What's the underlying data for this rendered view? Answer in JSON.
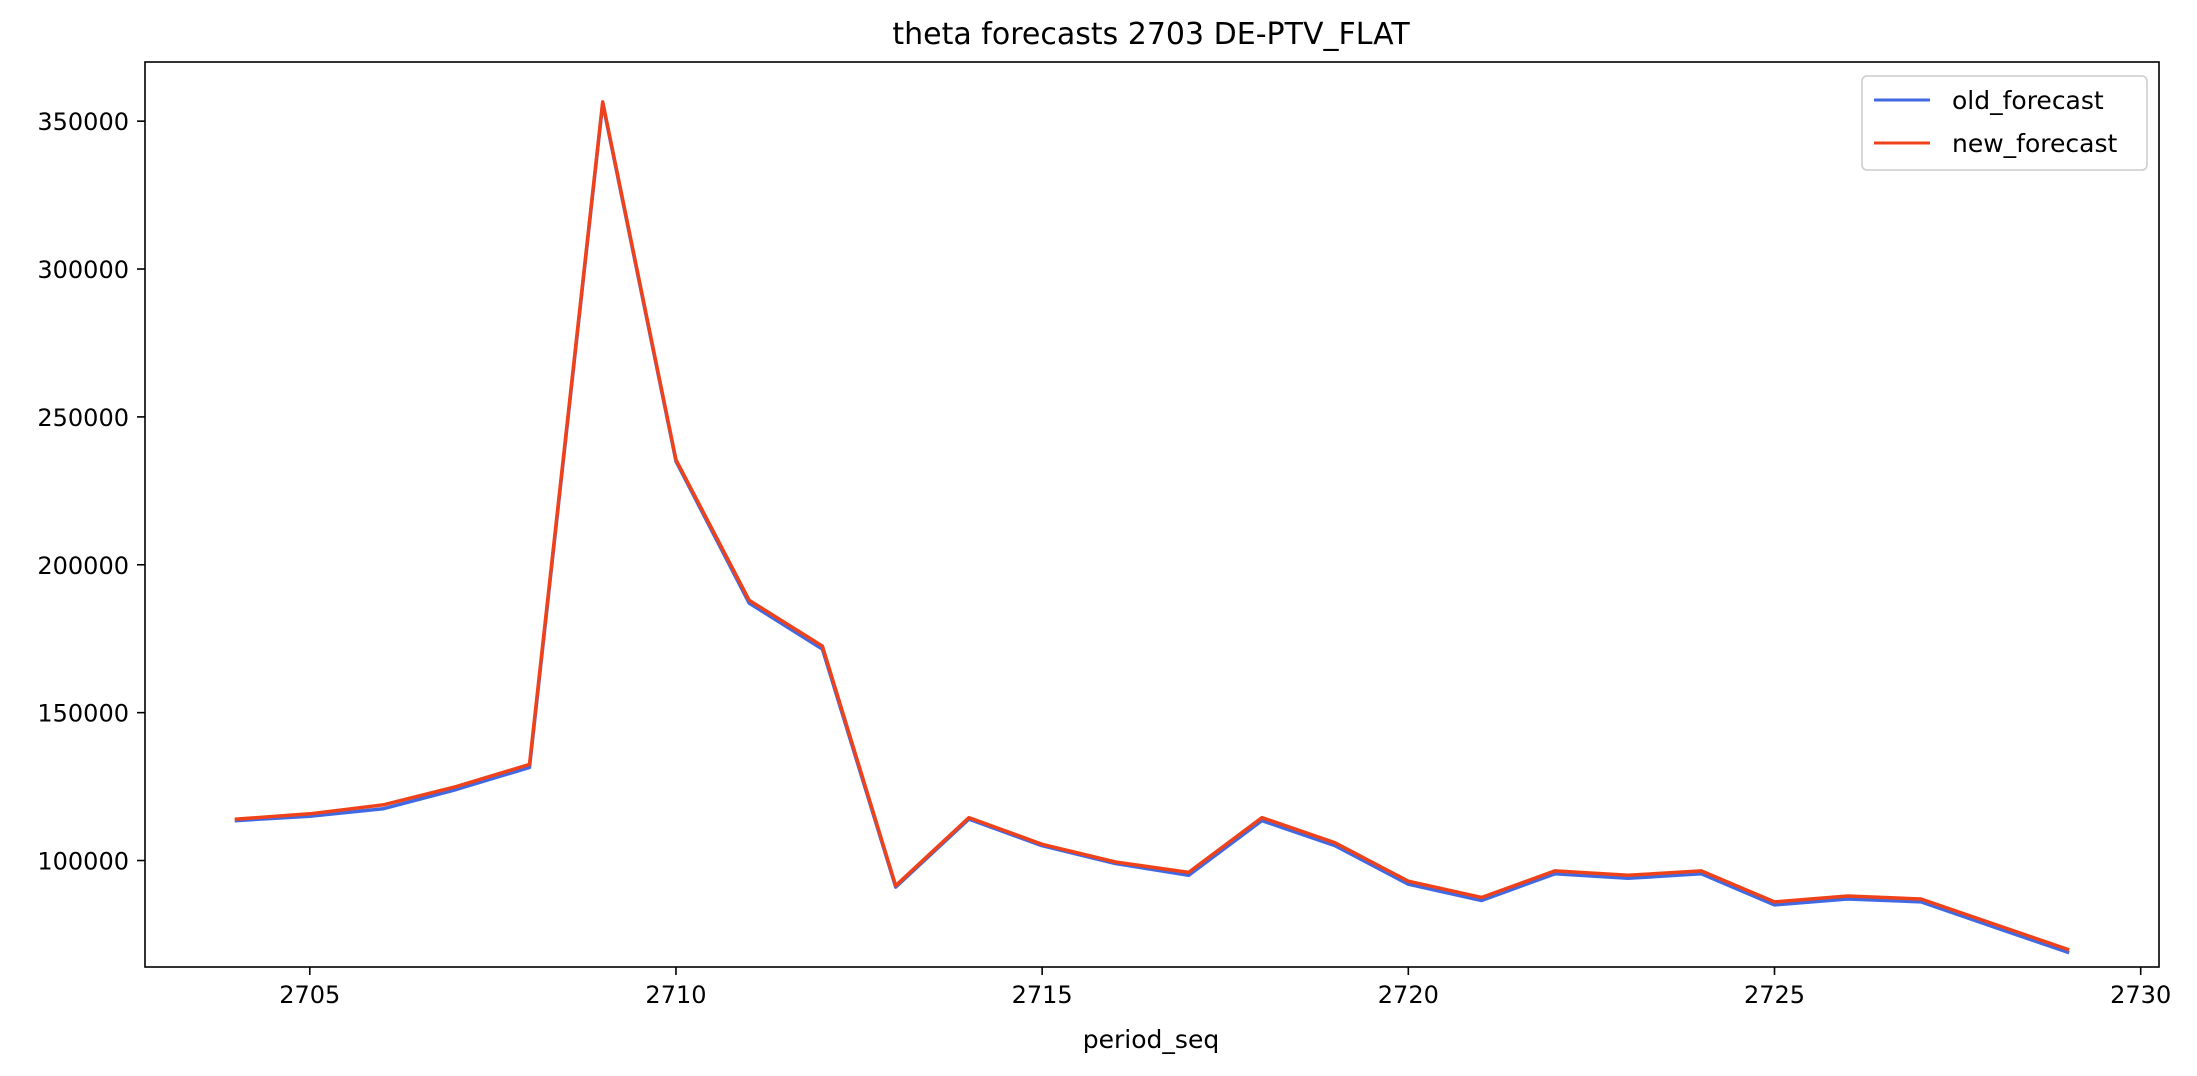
{
  "chart_data": {
    "type": "line",
    "title": "theta forecasts 2703 DE-PTV_FLAT",
    "xlabel": "period_seq",
    "ylabel": "",
    "xlim": [
      2702.75,
      2730.25
    ],
    "ylim": [
      64000,
      370000
    ],
    "xticks": [
      2705,
      2710,
      2715,
      2720,
      2725,
      2730
    ],
    "yticks": [
      100000,
      150000,
      200000,
      250000,
      300000,
      350000
    ],
    "grid": false,
    "legend": "top-right",
    "x": [
      2704,
      2705,
      2706,
      2707,
      2708,
      2709,
      2710,
      2711,
      2712,
      2713,
      2714,
      2715,
      2716,
      2717,
      2718,
      2719,
      2720,
      2721,
      2722,
      2723,
      2724,
      2725,
      2726,
      2727,
      2728,
      2729
    ],
    "series": [
      {
        "name": "old_forecast",
        "color": "#4169E1",
        "values": [
          113500,
          115000,
          117500,
          124000,
          131500,
          356000,
          235000,
          187000,
          171500,
          91000,
          114000,
          105000,
          99000,
          95000,
          113500,
          105000,
          92000,
          86500,
          95500,
          94000,
          95500,
          85000,
          87000,
          86000,
          77500,
          69000
        ]
      },
      {
        "name": "new_forecast",
        "color": "#F0421A",
        "values": [
          114000,
          115800,
          118800,
          125000,
          132500,
          356500,
          235500,
          188000,
          172500,
          91500,
          114500,
          105500,
          99500,
          96000,
          114500,
          106000,
          93000,
          87500,
          96500,
          95000,
          96500,
          86000,
          88000,
          87000,
          78500,
          70000
        ]
      }
    ]
  }
}
